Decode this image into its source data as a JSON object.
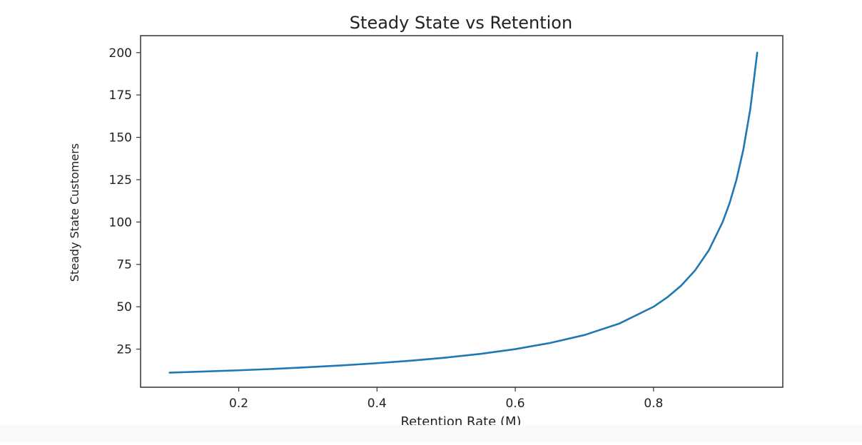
{
  "chart_data": {
    "type": "line",
    "title": "Steady State vs Retention",
    "xlabel": "Retention Rate (M)",
    "ylabel": "Steady State Customers",
    "xlim": [
      0.058,
      0.987
    ],
    "ylim": [
      2.5,
      210
    ],
    "x_ticks": [
      0.2,
      0.4,
      0.6,
      0.8
    ],
    "x_tick_labels": [
      "0.2",
      "0.4",
      "0.6",
      "0.8"
    ],
    "y_ticks": [
      25,
      50,
      75,
      100,
      125,
      150,
      175,
      200
    ],
    "y_tick_labels": [
      "25",
      "50",
      "75",
      "100",
      "125",
      "150",
      "175",
      "200"
    ],
    "grid": false,
    "series": [
      {
        "color": "#1f77b4",
        "x": [
          0.1,
          0.15,
          0.2,
          0.25,
          0.3,
          0.35,
          0.4,
          0.45,
          0.5,
          0.55,
          0.6,
          0.65,
          0.7,
          0.75,
          0.8,
          0.82,
          0.84,
          0.86,
          0.88,
          0.9,
          0.91,
          0.92,
          0.93,
          0.94,
          0.95
        ],
        "y": [
          11.1,
          11.8,
          12.5,
          13.3,
          14.3,
          15.4,
          16.7,
          18.2,
          20.0,
          22.2,
          25.0,
          28.6,
          33.3,
          40.0,
          50.0,
          55.6,
          62.5,
          71.4,
          83.3,
          100.0,
          111.1,
          125.0,
          142.9,
          166.7,
          200.0
        ]
      }
    ]
  }
}
